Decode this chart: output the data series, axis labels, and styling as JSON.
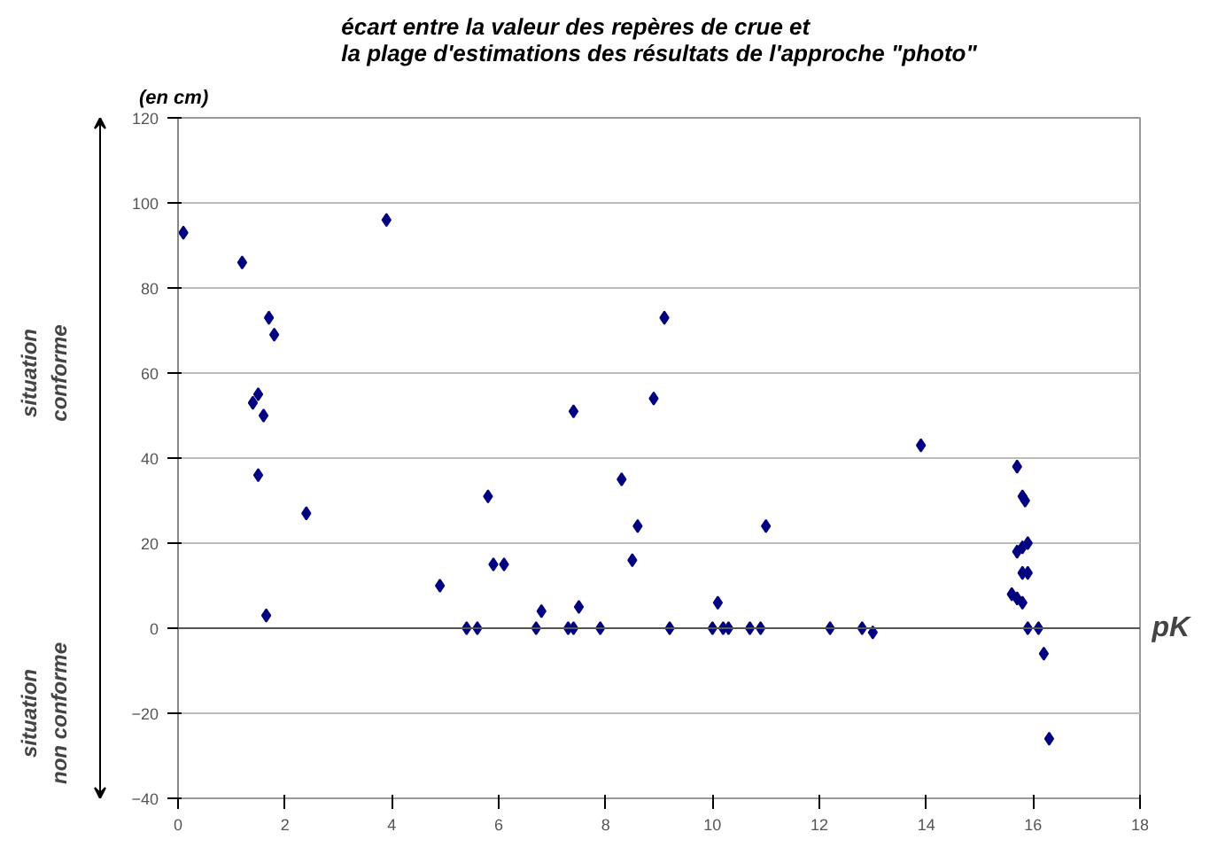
{
  "chart_data": {
    "type": "scatter",
    "title": "écart entre la valeur des repères de crue et\nla plage d'estimations des résultats de l'approche \"photo\"",
    "xlabel": "pK",
    "annotations": [
      "(en cm)",
      "situation conforme",
      "situation non conforme"
    ],
    "x": [
      0.1,
      1.2,
      1.4,
      1.5,
      1.6,
      1.5,
      1.65,
      1.7,
      1.8,
      2.4,
      3.9,
      4.9,
      5.4,
      5.6,
      5.8,
      5.9,
      6.1,
      6.7,
      6.8,
      7.3,
      7.4,
      7.4,
      7.5,
      7.9,
      8.3,
      8.5,
      8.6,
      8.9,
      9.1,
      9.2,
      10.0,
      10.1,
      10.2,
      10.3,
      10.7,
      10.9,
      11.0,
      12.2,
      12.8,
      13.0,
      13.9,
      15.6,
      15.7,
      15.7,
      15.7,
      15.8,
      15.8,
      15.8,
      15.8,
      15.85,
      15.9,
      15.9,
      15.9,
      16.1,
      16.2,
      16.3
    ],
    "values": [
      93,
      86,
      53,
      55,
      50,
      36,
      3,
      73,
      69,
      27,
      96,
      10,
      0,
      0,
      31,
      15,
      15,
      0,
      4,
      0,
      0,
      51,
      5,
      0,
      35,
      16,
      24,
      54,
      73,
      0,
      0,
      6,
      0,
      0,
      0,
      0,
      24,
      0,
      0,
      -1,
      43,
      8,
      7,
      38,
      18,
      19,
      13,
      6,
      31,
      30,
      20,
      13,
      0,
      0,
      -6,
      -26
    ],
    "color": "#000080",
    "marker": "diamond",
    "grid": "y",
    "xlim": [
      0,
      18
    ],
    "xticks": [
      0,
      2,
      4,
      6,
      8,
      10,
      12,
      14,
      16,
      18
    ],
    "ylim": [
      -40,
      120
    ],
    "yticks": [
      -40,
      -20,
      0,
      20,
      40,
      60,
      80,
      100,
      120
    ]
  }
}
